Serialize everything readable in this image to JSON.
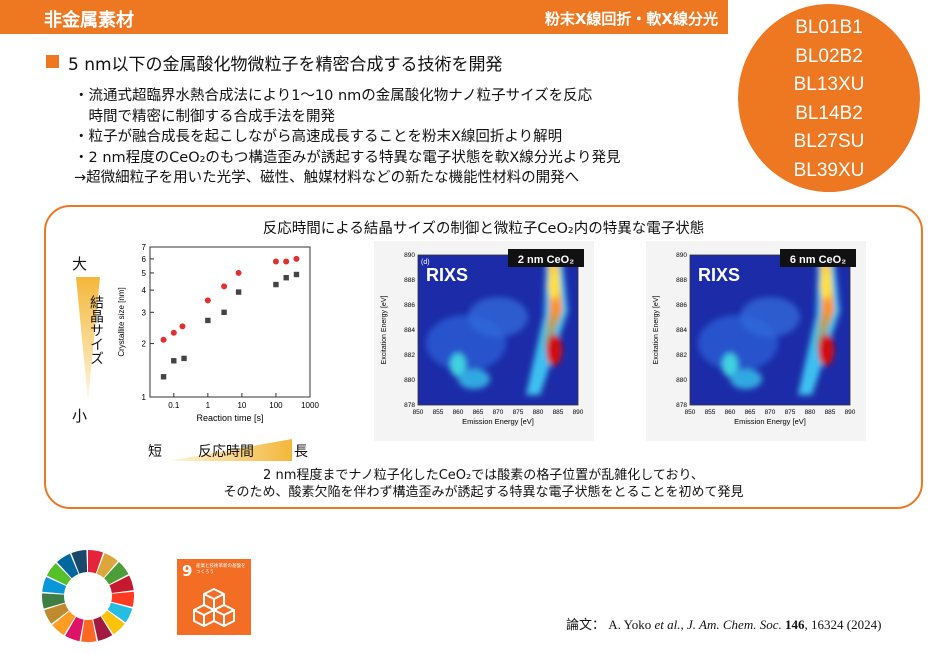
{
  "header": {
    "title": "非金属素材",
    "subtitle": "粉末X線回折・軟X線分光"
  },
  "beamlines": [
    "BL01B1",
    "BL02B2",
    "BL13XU",
    "BL14B2",
    "BL27SU",
    "BL39XU"
  ],
  "main": {
    "heading": "5 nm以下の金属酸化物微粒子を精密合成する技術を開発",
    "lines": [
      "・流通式超臨界水熱合成法により1～10 nmの金属酸化物ナノ粒子サイズを反応",
      "　時間で精密に制御する合成手法を開発",
      "・粒子が融合成長を起こしながら高速成長することを粉末X線回折より解明",
      "・2 nm程度のCeO₂のもつ構造歪みが誘起する特異な電子状態を軟X線分光より発見",
      "→超微細粒子を用いた光学、磁性、触媒材料などの新たな機能性材料の開発へ"
    ]
  },
  "figure": {
    "title": "反応時間による結晶サイズの制御と微粒子CeO₂内の特異な電子状態",
    "size_big": "大",
    "size_small": "小",
    "size_label": "結晶サイズ",
    "time_short": "短",
    "time_label": "反応時間",
    "time_long": "長",
    "conclusion_1": "2 nm程度までナノ粒子化したCeO₂では酸素の格子位置が乱雑化しており、",
    "conclusion_2": "そのため、酸素欠陥を伴わず構造歪みが誘起する特異な電子状態をとることを初めて発見"
  },
  "chart_data": {
    "type": "scatter",
    "xlabel": "Reaction time [s]",
    "ylabel": "Crystallite size [nm]",
    "xscale": "log",
    "yscale": "log",
    "xlim": [
      0.03,
      1000
    ],
    "ylim": [
      1,
      7
    ],
    "xticks": [
      "0.01",
      "0.1",
      "1",
      "10",
      "100",
      "1000"
    ],
    "yticks": [
      "1",
      "2",
      "3",
      "4",
      "5",
      "6",
      "7"
    ],
    "series": [
      {
        "marker": "circle",
        "color": "#e03030",
        "x": [
          0.05,
          0.1,
          0.18,
          1,
          3,
          8,
          100,
          200,
          400
        ],
        "y": [
          2.1,
          2.3,
          2.5,
          3.5,
          4.2,
          5.0,
          5.8,
          5.8,
          6.0
        ]
      },
      {
        "marker": "square",
        "color": "#444444",
        "x": [
          0.05,
          0.1,
          0.2,
          1,
          3,
          8,
          100,
          200,
          400
        ],
        "y": [
          1.3,
          1.6,
          1.65,
          2.7,
          3.0,
          3.9,
          4.3,
          4.7,
          4.9
        ]
      }
    ]
  },
  "maps": [
    {
      "panel": "(d)",
      "tag": "2 nm CeO₂",
      "title": "RIXS",
      "xlabel": "Emission Energy [eV]",
      "ylabel": "Excitation Energy [eV]",
      "xticks": [
        "850",
        "855",
        "860",
        "865",
        "870",
        "875",
        "880",
        "885",
        "890"
      ],
      "yticks": [
        "878",
        "880",
        "882",
        "884",
        "886",
        "888",
        "890"
      ]
    },
    {
      "panel": "",
      "tag": "6 nm CeO₂",
      "title": "RIXS",
      "xlabel": "Emission Energy [eV]",
      "ylabel": "Excitation Energy [eV]",
      "xticks": [
        "850",
        "855",
        "860",
        "865",
        "870",
        "875",
        "880",
        "885",
        "890"
      ],
      "yticks": [
        "878",
        "880",
        "882",
        "884",
        "886",
        "888",
        "890"
      ]
    }
  ],
  "sdg": {
    "number": "9",
    "text": "産業と技術革新の基盤をつくろう"
  },
  "citation": {
    "prefix": "論文：",
    "authors": "A. Yoko",
    "etal": " et al.,",
    "journal": " J. Am. Chem. Soc.",
    "volume": " 146",
    "pages": ", 16324 (2024)"
  },
  "colors": {
    "accent": "#ee7722",
    "red_marker": "#e03030",
    "gray_marker": "#444444",
    "map_bg": "#1c2ca8"
  }
}
